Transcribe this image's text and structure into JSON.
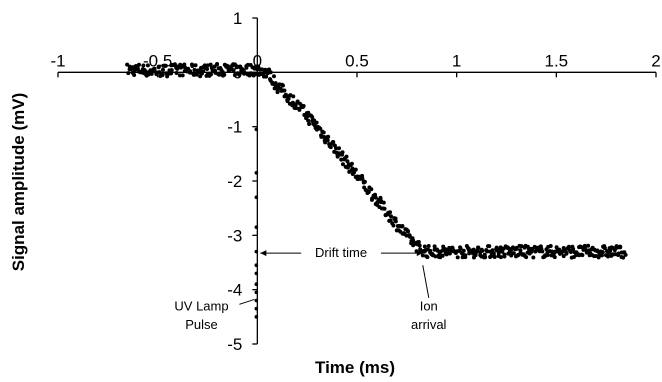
{
  "chart_data": {
    "type": "scatter",
    "title": "",
    "xlabel": "Time (ms)",
    "ylabel": "Signal amplitude (mV)",
    "xlim": [
      -1,
      2
    ],
    "ylim": [
      -5,
      1
    ],
    "x_ticks": [
      -1,
      -0.5,
      0,
      0.5,
      1,
      1.5,
      2
    ],
    "x_tick_labels": [
      "-1",
      "-0.5",
      "0",
      "0.5",
      "1",
      "1.5",
      "2"
    ],
    "y_ticks": [
      1,
      0,
      -1,
      -2,
      -3,
      -4,
      -5
    ],
    "y_tick_labels": [
      "1",
      "0",
      "-1",
      "-2",
      "-3",
      "-4",
      "-5"
    ],
    "grid": false,
    "legend": "none",
    "marker_color": "#000000",
    "series": [
      {
        "x": [
          -0.65,
          -0.6,
          -0.5,
          -0.4,
          -0.3,
          -0.2,
          -0.1,
          0,
          0.05,
          0.1,
          0.2,
          0.3,
          0.4,
          0.5,
          0.6,
          0.7,
          0.8,
          0.85,
          0.9,
          1,
          1.2,
          1.4,
          1.6,
          1.85
        ],
        "y": [
          0.05,
          0.05,
          0.02,
          0.05,
          0.03,
          0.05,
          0.04,
          0.05,
          0.0,
          -0.25,
          -0.6,
          -1.0,
          -1.45,
          -1.9,
          -2.35,
          -2.8,
          -3.2,
          -3.3,
          -3.3,
          -3.3,
          -3.3,
          -3.3,
          -3.3,
          -3.3
        ]
      },
      {
        "x": [
          0,
          0,
          0,
          0,
          0,
          0,
          0,
          0,
          0,
          0,
          0,
          0
        ],
        "y": [
          -1.05,
          -1.85,
          -2.3,
          -2.85,
          -3.3,
          -3.55,
          -3.7,
          -3.9,
          -4.05,
          -4.2,
          -4.35,
          -4.5
        ]
      }
    ],
    "annotations": [
      {
        "text": "Drift time",
        "x": 0.42,
        "y": -3.4
      },
      {
        "text": "UV Lamp",
        "x": -0.28,
        "y": -4.38
      },
      {
        "text": "Pulse",
        "x": -0.28,
        "y": -4.72
      },
      {
        "text": "Ion",
        "x": 0.86,
        "y": -4.38
      },
      {
        "text": "arrival",
        "x": 0.86,
        "y": -4.72
      }
    ]
  }
}
